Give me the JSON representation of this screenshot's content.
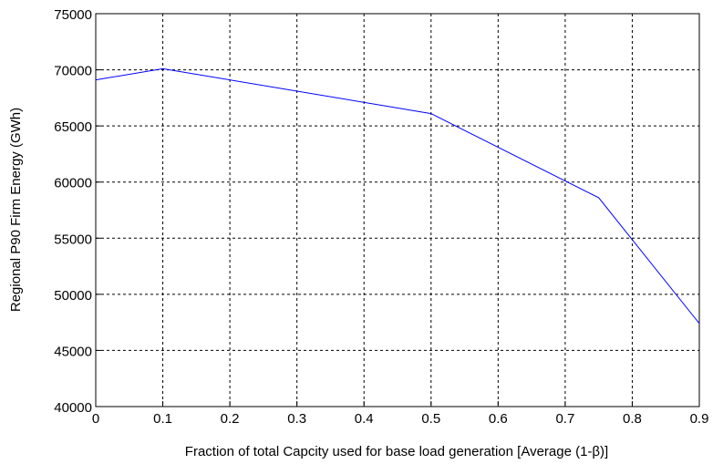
{
  "chart_data": {
    "type": "line",
    "xlabel": "Fraction of total Capcity used for base load generation [Average (1-β)]",
    "ylabel": "Regional P90 Firm Energy (GWh)",
    "series": [
      {
        "name": "P90 Firm Energy",
        "color": "#0000ff",
        "x": [
          0,
          0.1,
          0.5,
          0.75,
          0.9
        ],
        "values": [
          69100,
          70100,
          66100,
          58600,
          47400
        ]
      }
    ],
    "xlim": [
      0,
      0.9
    ],
    "xticks": [
      0,
      0.1,
      0.2,
      0.3,
      0.4,
      0.5,
      0.6,
      0.7,
      0.8,
      0.9
    ],
    "ylim": [
      40000,
      75000
    ],
    "yticks": [
      40000,
      45000,
      50000,
      55000,
      60000,
      65000,
      70000,
      75000
    ],
    "grid": true
  }
}
